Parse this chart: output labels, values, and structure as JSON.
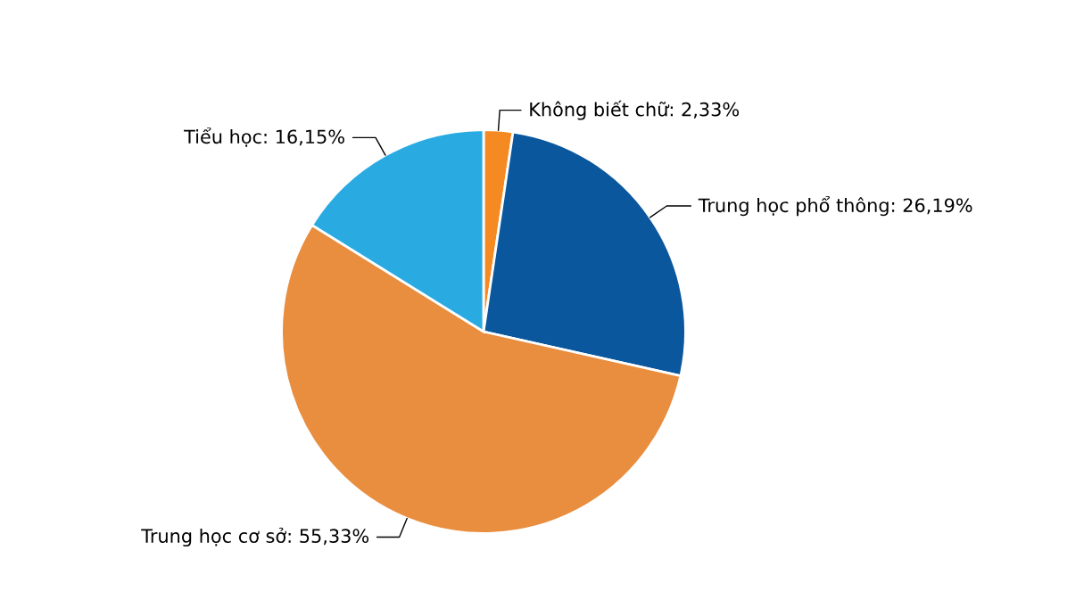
{
  "chart_data": {
    "type": "pie",
    "categories": [
      "Không biết chữ",
      "Trung học phổ thông",
      "Trung học cơ sở",
      "Tiểu học"
    ],
    "values": [
      2.33,
      26.19,
      55.33,
      16.15
    ],
    "value_labels": [
      "2,33%",
      "26,19%",
      "55,33%",
      "16,15%"
    ],
    "colors": [
      "#f58a23",
      "#0a579d",
      "#e98d3e",
      "#29abe2"
    ]
  }
}
